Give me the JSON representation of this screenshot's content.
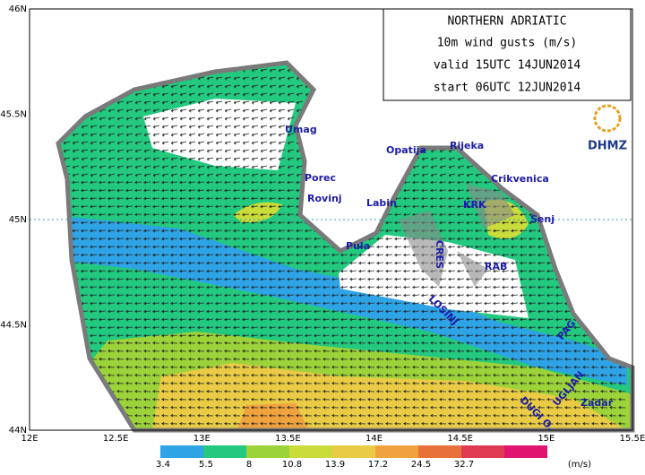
{
  "title_box": {
    "lines": [
      "NORTHERN ADRIATIC",
      "10m wind gusts (m/s)",
      "valid 15UTC 14JUN2014",
      "start 06UTC 12JUN2014"
    ]
  },
  "axes": {
    "lon_ticks": [
      "12E",
      "12.5E",
      "13E",
      "13.5E",
      "14E",
      "14.5E",
      "15E",
      "15.5E"
    ],
    "lat_ticks": [
      "46N",
      "45.5N",
      "45N",
      "44.5N",
      "44N"
    ]
  },
  "places": [
    "Umag",
    "Porec",
    "Rovinj",
    "Pula",
    "Labin",
    "Opatija",
    "Rijeka",
    "Crikvenica",
    "KRK",
    "Senj",
    "CRES",
    "RAB",
    "LOSINJ",
    "PAG",
    "Zadar",
    "UGLJAN",
    "DUGI O."
  ],
  "logo": "DHMZ",
  "legend": {
    "colors": [
      "#2ea3e6",
      "#22c97e",
      "#9dd33a",
      "#c9dc3a",
      "#e9cb45",
      "#f0a23e",
      "#e8713a",
      "#e03a52",
      "#e0156f"
    ],
    "ticks": [
      3.4,
      5.5,
      8,
      10.8,
      13.9,
      17.2,
      24.5,
      32.7
    ],
    "unit": "(m/s)"
  }
}
